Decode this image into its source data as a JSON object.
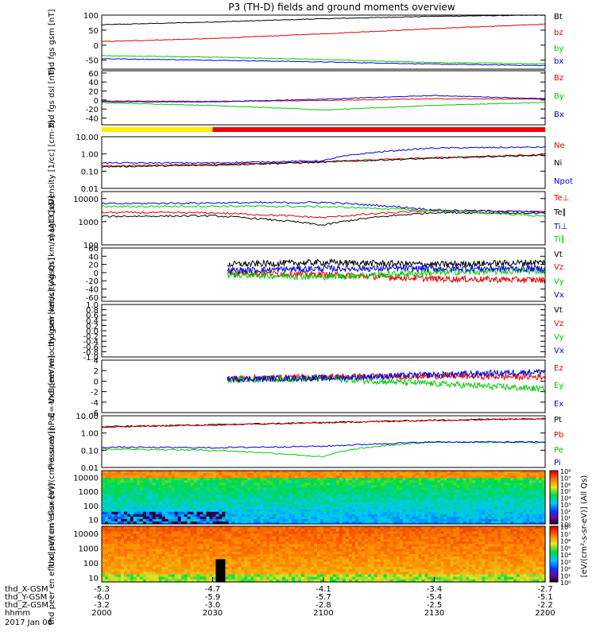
{
  "title": "P3 (TH-D) fields and ground moments overview",
  "date": "2017 Jan 06",
  "ephemeris": {
    "labels": [
      "thd_X-GSM",
      "thd_Y-GSM",
      "thd_Z-GSM",
      "hhmm"
    ],
    "columns": [
      [
        "-5.3",
        "-6.0",
        "-3.2",
        "2000"
      ],
      [
        "-4.7",
        "-5.9",
        "-3.0",
        "2030"
      ],
      [
        "-4.1",
        "-5.7",
        "-2.8",
        "2100"
      ],
      [
        "-3.4",
        "-5.4",
        "-2.5",
        "2130"
      ],
      [
        "-2.7",
        "-5.1",
        "-2.2",
        "2200"
      ]
    ]
  },
  "colorbar_label": "[eV/(cm²-s-sr-eV)] (All Qs)",
  "chart_data": [
    {
      "type": "line",
      "ylabel": "thd fgs gsm [nT]",
      "ylim": [
        -80,
        100
      ],
      "log": false,
      "ticks": [
        "100",
        "50",
        "0",
        "-50"
      ],
      "tick_values": [
        100,
        50,
        0,
        -50
      ],
      "series": [
        {
          "name": "Bt",
          "color": "#000000",
          "x": [
            0,
            30,
            60,
            90,
            120
          ],
          "values": [
            68,
            77,
            88,
            96,
            100
          ]
        },
        {
          "name": "bz",
          "color": "#e00000",
          "x": [
            0,
            30,
            60,
            90,
            120
          ],
          "values": [
            12,
            22,
            38,
            55,
            70
          ]
        },
        {
          "name": "by",
          "color": "#00cc00",
          "x": [
            0,
            30,
            60,
            90,
            120
          ],
          "values": [
            -35,
            -40,
            -48,
            -58,
            -62
          ]
        },
        {
          "name": "bx",
          "color": "#0000e0",
          "x": [
            0,
            30,
            60,
            90,
            120
          ],
          "values": [
            -45,
            -50,
            -56,
            -63,
            -68
          ]
        }
      ]
    },
    {
      "type": "line",
      "ylabel": "thd fgs dsl [nT]",
      "ylim": [
        -55,
        65
      ],
      "log": false,
      "ticks": [
        "60",
        "40",
        "20",
        "0",
        "-20",
        "-40"
      ],
      "tick_values": [
        60,
        40,
        20,
        0,
        -20,
        -40
      ],
      "series": [
        {
          "name": "Bz",
          "color": "#e00000",
          "x": [
            0,
            30,
            60,
            90,
            120
          ],
          "values": [
            -2,
            -3,
            -1,
            3,
            2
          ]
        },
        {
          "name": "By",
          "color": "#00cc00",
          "x": [
            0,
            30,
            60,
            90,
            120
          ],
          "values": [
            -6,
            -12,
            -22,
            -12,
            -5
          ]
        },
        {
          "name": "Bx",
          "color": "#0000e0",
          "x": [
            0,
            30,
            60,
            90,
            120
          ],
          "values": [
            -4,
            -4,
            2,
            10,
            3
          ]
        }
      ]
    },
    {
      "type": "line",
      "ylabel": "Density [1/cc] [cm-3]",
      "ylim": [
        0.01,
        10
      ],
      "log": true,
      "ticks": [
        "10.00",
        "1.00",
        "0.10",
        "0.01"
      ],
      "tick_values": [
        10,
        1,
        0.1,
        0.01
      ],
      "series": [
        {
          "name": "Ne",
          "color": "#e00000",
          "x": [
            0,
            30,
            60,
            90,
            120
          ],
          "values": [
            0.2,
            0.25,
            0.35,
            0.6,
            0.9
          ]
        },
        {
          "name": "Ni",
          "color": "#000000",
          "x": [
            0,
            30,
            60,
            90,
            120
          ],
          "values": [
            0.18,
            0.22,
            0.33,
            0.55,
            0.85
          ]
        },
        {
          "name": "Npot",
          "color": "#0000e0",
          "x": [
            0,
            30,
            60,
            90,
            120
          ],
          "values": [
            0.3,
            0.3,
            0.4,
            2.2,
            2.5
          ]
        }
      ]
    },
    {
      "type": "line",
      "ylabel": "magt3 [eV]",
      "ylim": [
        100,
        20000
      ],
      "log": true,
      "ticks": [
        "10000",
        "1000",
        "100"
      ],
      "tick_values": [
        10000,
        1000,
        100
      ],
      "series": [
        {
          "name": "Te⊥",
          "color": "#e00000",
          "x": [
            0,
            30,
            60,
            90,
            120
          ],
          "values": [
            2500,
            2400,
            1500,
            3000,
            2700
          ]
        },
        {
          "name": "Te∥",
          "color": "#000000",
          "x": [
            0,
            30,
            60,
            90,
            120
          ],
          "values": [
            1700,
            1800,
            700,
            2500,
            2300
          ]
        },
        {
          "name": "Ti⊥",
          "color": "#0000e0",
          "x": [
            0,
            30,
            60,
            90,
            120
          ],
          "values": [
            6000,
            6500,
            6800,
            3200,
            2600
          ]
        },
        {
          "name": "Ti∥",
          "color": "#00cc00",
          "x": [
            0,
            30,
            60,
            90,
            120
          ],
          "values": [
            4500,
            4700,
            4500,
            3000,
            1700
          ]
        }
      ]
    },
    {
      "type": "line",
      "ylabel": "thd peir velocity gsm [km/s] (All Qs)",
      "ylim": [
        -70,
        60
      ],
      "log": false,
      "ticks": [
        "60",
        "40",
        "20",
        "0",
        "-20",
        "-40",
        "-60"
      ],
      "tick_values": [
        60,
        40,
        20,
        0,
        -20,
        -40,
        -60
      ],
      "series": [
        {
          "name": "Vt",
          "color": "#000000",
          "x": [
            34,
            60,
            90,
            120
          ],
          "values": [
            20,
            25,
            20,
            25
          ]
        },
        {
          "name": "Vz",
          "color": "#e00000",
          "x": [
            34,
            60,
            90,
            120
          ],
          "values": [
            0,
            -5,
            -15,
            -18
          ]
        },
        {
          "name": "Vy",
          "color": "#00cc00",
          "x": [
            34,
            60,
            90,
            120
          ],
          "values": [
            -5,
            -10,
            0,
            5
          ]
        },
        {
          "name": "Vx",
          "color": "#0000e0",
          "x": [
            34,
            60,
            90,
            120
          ],
          "values": [
            5,
            10,
            10,
            10
          ]
        }
      ]
    },
    {
      "type": "line",
      "ylabel": "thd peer velocity gsm [km/s] (All Qs)",
      "ylim": [
        -1,
        1
      ],
      "log": false,
      "ticks": [
        "1.0",
        "0.8",
        "0.6",
        "0.4",
        "0.2",
        "0.0",
        "-0.2",
        "-0.4",
        "-0.6",
        "-0.8",
        "-1.0"
      ],
      "tick_values": [
        1,
        0.8,
        0.6,
        0.4,
        0.2,
        0,
        -0.2,
        -0.4,
        -0.6,
        -0.8,
        -1
      ],
      "series": [
        {
          "name": "Vt",
          "color": "#000000",
          "x": [],
          "values": []
        },
        {
          "name": "Vz",
          "color": "#e00000",
          "x": [],
          "values": []
        },
        {
          "name": "Vy",
          "color": "#00cc00",
          "x": [],
          "values": []
        },
        {
          "name": "Vx",
          "color": "#0000e0",
          "x": [],
          "values": []
        }
      ]
    },
    {
      "type": "line",
      "ylabel": "E=-VxB [mV/m]",
      "ylim": [
        -6,
        4
      ],
      "log": false,
      "ticks": [
        "4",
        "2",
        "0",
        "-2",
        "-4",
        "-6"
      ],
      "tick_values": [
        4,
        2,
        0,
        -2,
        -4,
        -6
      ],
      "series": [
        {
          "name": "Ez",
          "color": "#e00000",
          "x": [
            34,
            60,
            90,
            120
          ],
          "values": [
            0.5,
            0.8,
            1.0,
            0.8
          ]
        },
        {
          "name": "Ey",
          "color": "#00cc00",
          "x": [
            34,
            60,
            90,
            120
          ],
          "values": [
            0.3,
            0.5,
            -0.5,
            -1.5
          ]
        },
        {
          "name": "Ex",
          "color": "#0000e0",
          "x": [
            34,
            60,
            90,
            120
          ],
          "values": [
            0.4,
            0.6,
            1.2,
            1.8
          ]
        }
      ]
    },
    {
      "type": "line",
      "ylabel": "Pressure [nPa]",
      "ylim": [
        0.01,
        10
      ],
      "log": true,
      "ticks": [
        "10.00",
        "1.00",
        "0.10",
        "0.01"
      ],
      "tick_values": [
        10,
        1,
        0.1,
        0.01
      ],
      "series": [
        {
          "name": "Pt",
          "color": "#000000",
          "x": [
            0,
            30,
            60,
            90,
            120
          ],
          "values": [
            2.3,
            3.0,
            4.0,
            5.5,
            7.0
          ]
        },
        {
          "name": "Pb",
          "color": "#e00000",
          "x": [
            0,
            30,
            60,
            90,
            120
          ],
          "values": [
            2.2,
            2.9,
            3.9,
            5.3,
            6.8
          ]
        },
        {
          "name": "Pe",
          "color": "#00cc00",
          "x": [
            0,
            30,
            60,
            90,
            120
          ],
          "values": [
            0.12,
            0.1,
            0.04,
            0.3,
            0.28
          ]
        },
        {
          "name": "Pi",
          "color": "#0000e0",
          "x": [
            0,
            30,
            60,
            90,
            120
          ],
          "values": [
            0.15,
            0.14,
            0.17,
            0.3,
            0.3
          ]
        }
      ]
    },
    {
      "type": "heatmap",
      "ylabel": "thd peir en eflux [eV/(cm²-s-sr-eV)]",
      "ylim": [
        5,
        30000
      ],
      "log": true,
      "ticks": [
        "10000",
        "1000",
        "100",
        "10"
      ],
      "tick_values": [
        10000,
        1000,
        100,
        10
      ]
    },
    {
      "type": "heatmap",
      "ylabel": "thd peer en eflux [eV/(cm²-s-sr-eV)]",
      "ylim": [
        5,
        30000
      ],
      "log": true,
      "ticks": [
        "10000",
        "1000",
        "100",
        "10"
      ],
      "tick_values": [
        10000,
        1000,
        100,
        10
      ]
    }
  ],
  "colorbar_ticks": [
    "10⁸",
    "10⁷",
    "10⁶",
    "10⁵",
    "10⁴",
    "10³",
    "10²",
    "10¹",
    "10⁰"
  ],
  "quality_bar": {
    "segments": [
      {
        "from": 0,
        "to": 30,
        "color": "#ffee00"
      },
      {
        "from": 30,
        "to": 120,
        "color": "#ee0000"
      }
    ]
  }
}
